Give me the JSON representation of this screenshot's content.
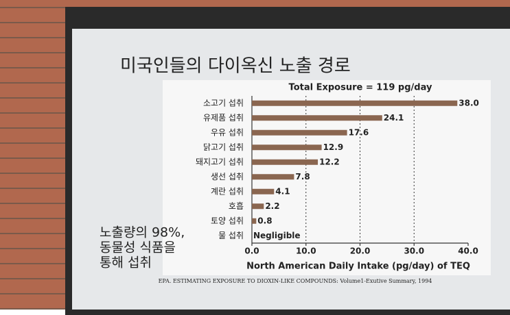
{
  "slide_title": "미국인들의 다이옥신 노출 경로",
  "annotation": [
    "노출량의 98%,",
    "동물성 식품을",
    "통해 섭취"
  ],
  "footer": "EPA. ESTIMATING EXPOSURE TO DIOXIN-LIKE COMPOUNDS: Volume1-Exutive Summary, 1994",
  "chart_data": {
    "type": "hbar",
    "title": "Total Exposure = 119 pg/day",
    "x_label": "North American Daily Intake (pg/day) of TEQ",
    "categories": [
      "소고기 섭취",
      "유제품 섭취",
      "우유 섭취",
      "닭고기 섭취",
      "돼지고기 섭취",
      "생선 섭취",
      "계란 섭취",
      "호흡",
      "토양 섭취",
      "물 섭취"
    ],
    "values": [
      38.0,
      24.1,
      17.6,
      12.9,
      12.2,
      7.8,
      4.1,
      2.2,
      0.8,
      null
    ],
    "value_labels": [
      "38.0",
      "24.1",
      "17.6",
      "12.9",
      "12.2",
      "7.8",
      "4.1",
      "2.2",
      "0.8",
      "Negligible"
    ],
    "color": "#8a6650",
    "xlim": [
      0,
      40
    ],
    "xticks": [
      {
        "value": 0,
        "label": "0.0"
      },
      {
        "value": 10,
        "label": "10.0"
      },
      {
        "value": 20,
        "label": "20.0"
      },
      {
        "value": 30,
        "label": "30.0"
      },
      {
        "value": 40,
        "label": "40.0"
      }
    ],
    "grid": true
  }
}
